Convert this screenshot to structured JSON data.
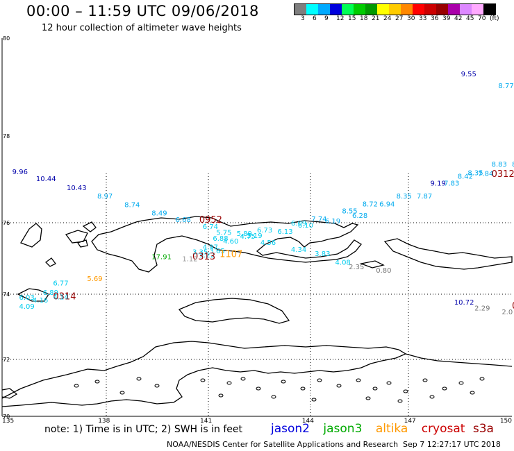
{
  "header": {
    "title": "00:00 – 11:59 UTC 09/06/2018",
    "subtitle": "12 hour collection of altimeter wave heights"
  },
  "legend": {
    "unit": "(ft)",
    "bins": [
      {
        "label": "3",
        "color": "#7f7f7f"
      },
      {
        "label": "6",
        "color": "#00ffff"
      },
      {
        "label": "9",
        "color": "#00aaff"
      },
      {
        "label": "12",
        "color": "#0000dd"
      },
      {
        "label": "15",
        "color": "#00ff55"
      },
      {
        "label": "18",
        "color": "#00cc00"
      },
      {
        "label": "21",
        "color": "#009900"
      },
      {
        "label": "24",
        "color": "#ffff00"
      },
      {
        "label": "27",
        "color": "#ffcc00"
      },
      {
        "label": "30",
        "color": "#ff8800"
      },
      {
        "label": "33",
        "color": "#ff0000"
      },
      {
        "label": "36",
        "color": "#cc0000"
      },
      {
        "label": "39",
        "color": "#990000"
      },
      {
        "label": "42",
        "color": "#aa00aa"
      },
      {
        "label": "45",
        "color": "#dd88ff"
      },
      {
        "label": "70",
        "color": "#ffaaff"
      },
      {
        "label": "",
        "color": "#000000"
      }
    ]
  },
  "axes": {
    "lat_labels": [
      "80",
      "78",
      "76",
      "74",
      "72",
      "70"
    ],
    "lon_labels": [
      "135",
      "138",
      "141",
      "144",
      "147",
      "150"
    ]
  },
  "observations": [
    {
      "text": "9.55",
      "lon": 148.5,
      "lat": 79.22,
      "color": "#0000aa"
    },
    {
      "text": "8.77",
      "lon": 149.6,
      "lat": 78.98,
      "color": "#00aaee"
    },
    {
      "text": "9.96",
      "lon": 135.3,
      "lat": 77.12,
      "color": "#0000aa"
    },
    {
      "text": "10.44",
      "lon": 136.0,
      "lat": 76.96,
      "color": "#0000aa"
    },
    {
      "text": "10.43",
      "lon": 136.9,
      "lat": 76.75,
      "color": "#0000aa"
    },
    {
      "text": "8.97",
      "lon": 137.8,
      "lat": 76.56,
      "color": "#00aaee"
    },
    {
      "text": "8.74",
      "lon": 138.6,
      "lat": 76.36,
      "color": "#00aaee"
    },
    {
      "text": "8.49",
      "lon": 139.4,
      "lat": 76.17,
      "color": "#00aaee"
    },
    {
      "text": "6.68",
      "lon": 140.1,
      "lat": 76.02,
      "color": "#00aaee"
    },
    {
      "text": "0952",
      "lon": 140.8,
      "lat": 76.0,
      "color": "#990000",
      "marker": true
    },
    {
      "text": "6.74",
      "lon": 140.9,
      "lat": 75.83,
      "color": "#00ccee"
    },
    {
      "text": "5.75",
      "lon": 141.3,
      "lat": 75.66,
      "color": "#00ccee"
    },
    {
      "text": "5.89",
      "lon": 141.9,
      "lat": 75.63,
      "color": "#00ccee"
    },
    {
      "text": "5.19",
      "lon": 142.2,
      "lat": 75.57,
      "color": "#00ccee"
    },
    {
      "text": "4.75",
      "lon": 142.0,
      "lat": 75.55,
      "color": "#00ccee"
    },
    {
      "text": "6.88",
      "lon": 141.2,
      "lat": 75.5,
      "color": "#00ccee"
    },
    {
      "text": "4.60",
      "lon": 141.5,
      "lat": 75.42,
      "color": "#00ccee"
    },
    {
      "text": "6.73",
      "lon": 142.5,
      "lat": 75.73,
      "color": "#00ccee"
    },
    {
      "text": "6.13",
      "lon": 143.1,
      "lat": 75.69,
      "color": "#00ccee"
    },
    {
      "text": "6.09",
      "lon": 143.5,
      "lat": 75.92,
      "color": "#00ccee"
    },
    {
      "text": "6.10",
      "lon": 143.7,
      "lat": 75.86,
      "color": "#00ccee"
    },
    {
      "text": "7.74",
      "lon": 144.1,
      "lat": 76.03,
      "color": "#00aaee"
    },
    {
      "text": "6.19",
      "lon": 144.5,
      "lat": 75.98,
      "color": "#00aaee"
    },
    {
      "text": "8.55",
      "lon": 145.0,
      "lat": 76.22,
      "color": "#00aaee"
    },
    {
      "text": "6.28",
      "lon": 145.3,
      "lat": 76.11,
      "color": "#00aaee"
    },
    {
      "text": "8.72",
      "lon": 145.6,
      "lat": 76.38,
      "color": "#00aaee"
    },
    {
      "text": "6.94",
      "lon": 146.1,
      "lat": 76.38,
      "color": "#00aaee"
    },
    {
      "text": "8.35",
      "lon": 146.6,
      "lat": 76.56,
      "color": "#00aaee"
    },
    {
      "text": "7.87",
      "lon": 147.2,
      "lat": 76.56,
      "color": "#00aaee"
    },
    {
      "text": "9.19",
      "lon": 147.6,
      "lat": 76.86,
      "color": "#0000aa"
    },
    {
      "text": "7.83",
      "lon": 148.0,
      "lat": 76.86,
      "color": "#00aaee"
    },
    {
      "text": "8.42",
      "lon": 148.4,
      "lat": 77.02,
      "color": "#00aaee"
    },
    {
      "text": "8.35",
      "lon": 148.7,
      "lat": 77.1,
      "color": "#00aaee"
    },
    {
      "text": "7.84",
      "lon": 149.0,
      "lat": 77.08,
      "color": "#00aaee"
    },
    {
      "text": "0312",
      "lon": 149.4,
      "lat": 77.06,
      "color": "#990000",
      "marker": true
    },
    {
      "text": "8.83",
      "lon": 149.4,
      "lat": 77.3,
      "color": "#00aaee"
    },
    {
      "text": "8.",
      "lon": 150.0,
      "lat": 77.3,
      "color": "#00aaee"
    },
    {
      "text": "4.97",
      "lon": 140.9,
      "lat": 75.25,
      "color": "#00ccee"
    },
    {
      "text": "4.56",
      "lon": 142.6,
      "lat": 75.38,
      "color": "#00ccee"
    },
    {
      "text": "4.34",
      "lon": 143.5,
      "lat": 75.18,
      "color": "#00ccee"
    },
    {
      "text": "3.35",
      "lon": 140.6,
      "lat": 75.12,
      "color": "#00ccee"
    },
    {
      "text": "3.65",
      "lon": 141.1,
      "lat": 75.15,
      "color": "#00ccee"
    },
    {
      "text": "3.22",
      "lon": 140.8,
      "lat": 75.03,
      "color": "#00ccee"
    },
    {
      "text": "1107",
      "lon": 141.4,
      "lat": 75.04,
      "color": "#ff9900",
      "marker": true
    },
    {
      "text": "3.83",
      "lon": 144.2,
      "lat": 75.07,
      "color": "#00ccee"
    },
    {
      "text": "17.91",
      "lon": 139.4,
      "lat": 74.98,
      "color": "#00aa00"
    },
    {
      "text": "0313",
      "lon": 140.6,
      "lat": 74.97,
      "color": "#990000",
      "marker": true
    },
    {
      "text": "1.12",
      "lon": 140.3,
      "lat": 74.92,
      "color": "#999999"
    },
    {
      "text": "4.08",
      "lon": 144.8,
      "lat": 74.83,
      "color": "#00ccee"
    },
    {
      "text": "2.35",
      "lon": 145.2,
      "lat": 74.7,
      "color": "#777777"
    },
    {
      "text": "0.80",
      "lon": 146.0,
      "lat": 74.6,
      "color": "#777777"
    },
    {
      "text": "5.69",
      "lon": 137.5,
      "lat": 74.37,
      "color": "#ff9900"
    },
    {
      "text": "6.77",
      "lon": 136.5,
      "lat": 74.24,
      "color": "#00ccee"
    },
    {
      "text": "6.89",
      "lon": 136.2,
      "lat": 73.98,
      "color": "#00ccee"
    },
    {
      "text": "6.03",
      "lon": 135.5,
      "lat": 73.83,
      "color": "#00ccee"
    },
    {
      "text": "0314",
      "lon": 136.5,
      "lat": 73.84,
      "color": "#990000",
      "marker": true
    },
    {
      "text": "4.16",
      "lon": 135.9,
      "lat": 73.74,
      "color": "#00ccee"
    },
    {
      "text": "4.14",
      "lon": 136.5,
      "lat": 73.84,
      "color": "#00ccee"
    },
    {
      "text": "4.09",
      "lon": 135.5,
      "lat": 73.55,
      "color": "#00ccee"
    },
    {
      "text": "10.72",
      "lon": 148.3,
      "lat": 73.68,
      "color": "#0000aa"
    },
    {
      "text": "2.29",
      "lon": 148.9,
      "lat": 73.5,
      "color": "#777777"
    },
    {
      "text": "2.0",
      "lon": 149.7,
      "lat": 73.38,
      "color": "#777777"
    },
    {
      "text": "0",
      "lon": 150.0,
      "lat": 73.55,
      "color": "#990000",
      "marker": true
    }
  ],
  "footer": {
    "note": "note:  1) Time is in UTC;  2) SWH is in feet",
    "satellites": [
      {
        "name": "jason2",
        "color": "#0000dd"
      },
      {
        "name": "jason3",
        "color": "#00aa00"
      },
      {
        "name": "altika",
        "color": "#ff9900"
      },
      {
        "name": "cryosat",
        "color": "#cc0000"
      },
      {
        "name": "s3a",
        "color": "#990000"
      }
    ],
    "credit": "NOAA/NESDIS Center for Satellite Applications and Research",
    "timestamp": "Sep  7 12:27:17 UTC 2018"
  }
}
